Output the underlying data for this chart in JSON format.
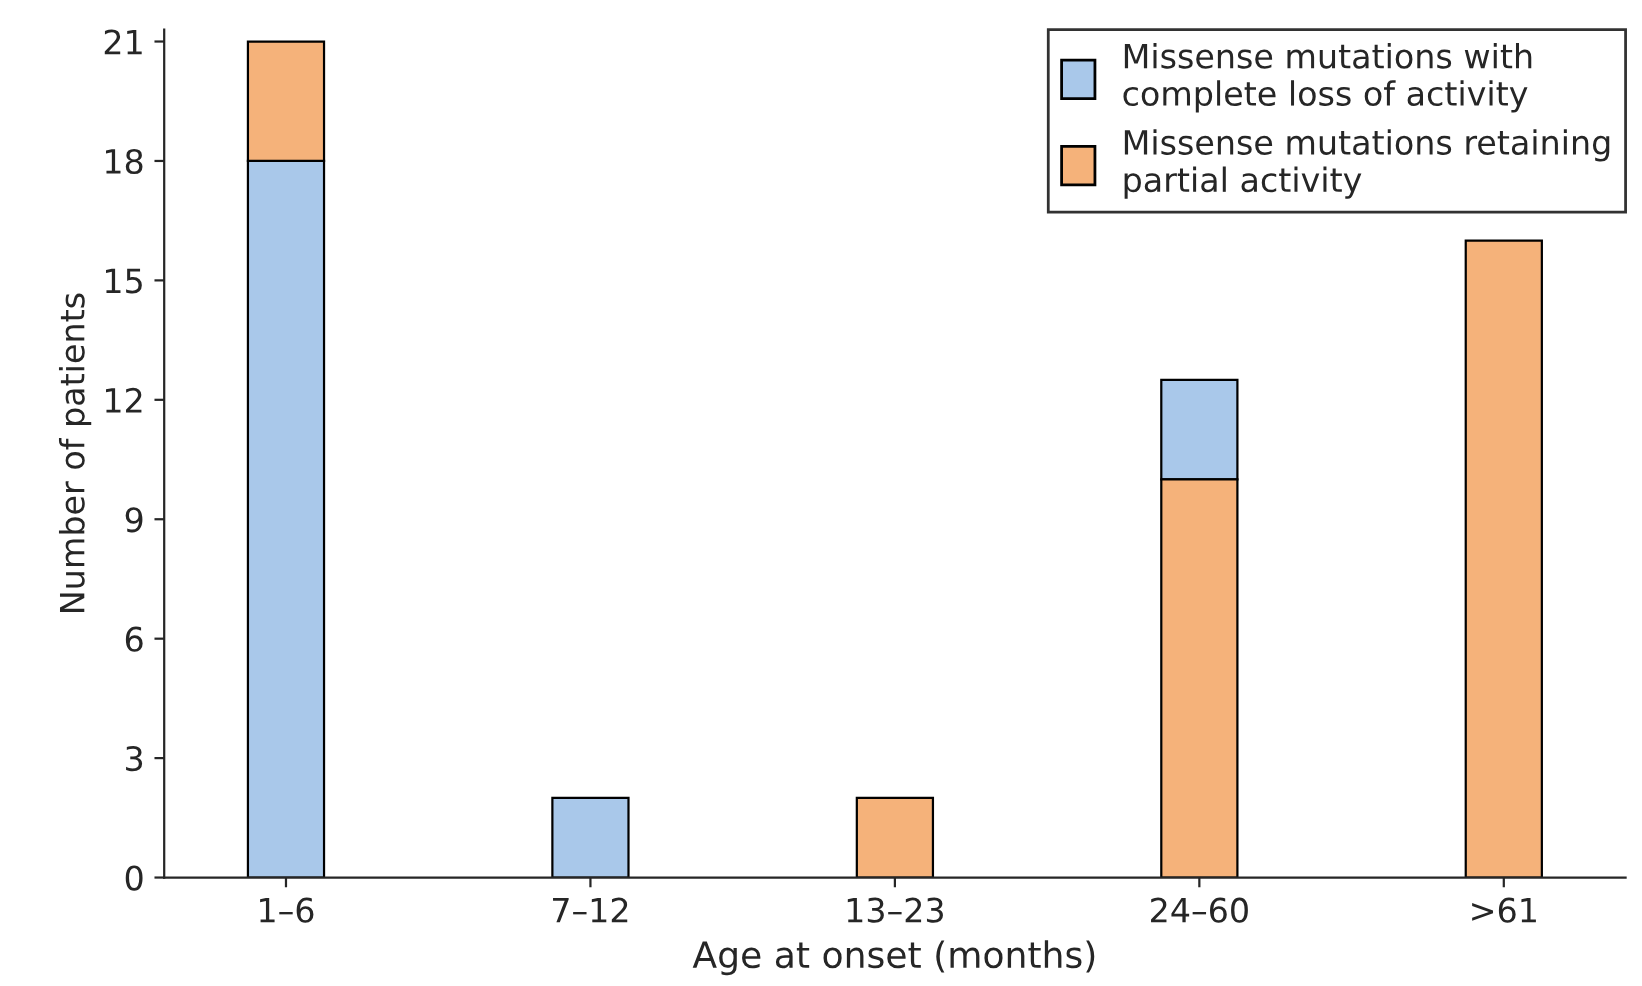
{
  "chart_data": {
    "type": "bar",
    "xlabel": "Age at onset (months)",
    "ylabel": "Number of patients",
    "categories": [
      "1–6",
      "7–12",
      "13–23",
      "24–60",
      ">61"
    ],
    "series": [
      {
        "name": "Missense mutations with\ncomplete loss of activity",
        "color": "#a9c8ea",
        "values": [
          18,
          2,
          null,
          2.5,
          null
        ],
        "base": [
          0,
          0,
          null,
          10,
          null
        ]
      },
      {
        "name": "Missense mutations retaining\npartial activity",
        "color": "#f5b27a",
        "values": [
          3,
          null,
          2,
          10,
          16
        ],
        "base": [
          18,
          null,
          0,
          0,
          0
        ]
      }
    ],
    "ylim": [
      0,
      21.3
    ],
    "yticks": [
      0,
      3,
      6,
      9,
      12,
      15,
      18,
      21
    ],
    "grid": false,
    "legend": "top right"
  }
}
